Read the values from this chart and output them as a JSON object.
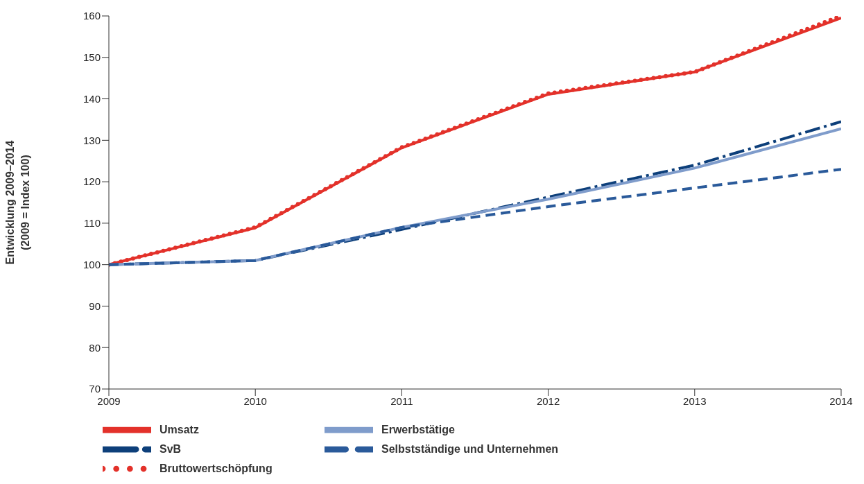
{
  "chart_data": {
    "type": "line",
    "ylabel": "Entwicklung 2009–2014\n(2009 = Index 100)",
    "x": [
      2009,
      2010,
      2011,
      2012,
      2013,
      2014
    ],
    "xlim": [
      2009,
      2014
    ],
    "xticks": [
      2009,
      2010,
      2011,
      2012,
      2013,
      2014
    ],
    "ylim": [
      70,
      160
    ],
    "yticks": [
      70,
      80,
      90,
      100,
      110,
      120,
      130,
      140,
      150,
      160
    ],
    "grid": false,
    "legend": "bottom",
    "marker": "none",
    "series": [
      {
        "name": "Umsatz",
        "color": "#e3312a",
        "line_style": "solid",
        "values": [
          100,
          108.9,
          128.2,
          141.1,
          146.5,
          159.5
        ]
      },
      {
        "name": "SvB",
        "color": "#0d3f7a",
        "line_style": "dashdot",
        "values": [
          100,
          101,
          108.5,
          116.3,
          124,
          134.5
        ]
      },
      {
        "name": "Bruttowertschöpfung",
        "color": "#e3312a",
        "line_style": "dotted",
        "values": [
          100,
          109,
          128.3,
          141.3,
          146.5,
          160
        ]
      },
      {
        "name": "Erwerbstätige",
        "color": "#7f9ccb",
        "line_style": "solid",
        "values": [
          100,
          101,
          109,
          115.8,
          123.3,
          132.8
        ]
      },
      {
        "name": "Selbstständige und Unternehmen",
        "color": "#2a5a9a",
        "line_style": "dashed",
        "values": [
          100,
          101,
          109,
          114,
          118.5,
          123
        ]
      }
    ]
  }
}
